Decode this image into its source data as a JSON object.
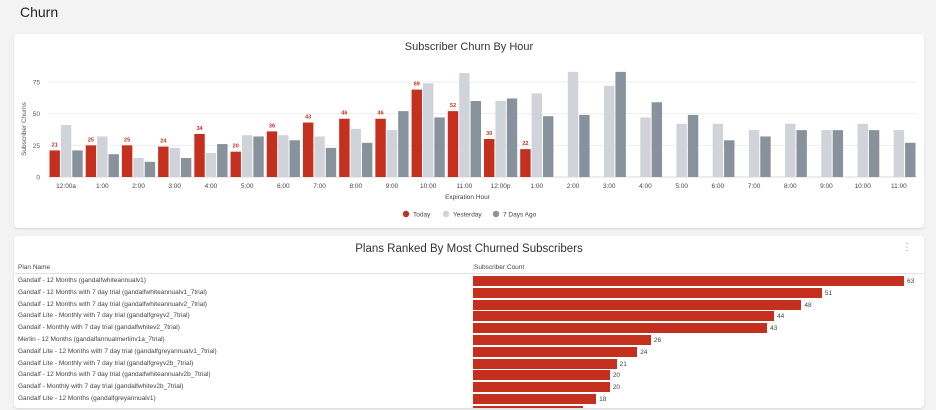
{
  "page_title": "Churn",
  "chart_data": [
    {
      "type": "bar",
      "title": "Subscriber Churn By Hour",
      "xlabel": "Expiration Hour",
      "ylabel": "Subscriber Churns",
      "ylim": [
        0,
        85
      ],
      "yticks": [
        "0",
        "25",
        "50",
        "75"
      ],
      "ytick_values": [
        0,
        25,
        50,
        75
      ],
      "legend_position": "bottom",
      "categories": [
        "12:00a",
        "1:00",
        "2:00",
        "3:00",
        "4:00",
        "5:00",
        "6:00",
        "7:00",
        "8:00",
        "9:00",
        "10:00",
        "11:00",
        "12:00p",
        "1:00",
        "2:00",
        "3:00",
        "4:00",
        "5:00",
        "6:00",
        "7:00",
        "8:00",
        "9:00",
        "10:00",
        "11:00"
      ],
      "series": [
        {
          "name": "Today",
          "color": "#c5301e",
          "labels": true,
          "values": [
            21,
            25,
            25,
            24,
            34,
            20,
            36,
            43,
            46,
            46,
            69,
            52,
            30,
            22,
            null,
            null,
            null,
            null,
            null,
            null,
            null,
            null,
            null,
            null
          ]
        },
        {
          "name": "Yesterday",
          "color": "#d0d3da",
          "labels": false,
          "values": [
            41,
            32,
            15,
            23,
            19,
            33,
            33,
            32,
            38,
            37,
            74,
            82,
            60,
            66,
            83,
            72,
            47,
            42,
            42,
            37,
            42,
            37,
            42,
            37
          ]
        },
        {
          "name": "7 Days Ago",
          "color": "#87929c",
          "labels": false,
          "values": [
            21,
            18,
            12,
            15,
            26,
            32,
            29,
            23,
            27,
            52,
            47,
            60,
            62,
            48,
            49,
            83,
            59,
            49,
            29,
            32,
            37,
            37,
            37,
            27
          ]
        }
      ]
    },
    {
      "type": "bar",
      "orientation": "horizontal",
      "title": "Plans Ranked By Most Churned Subscribers",
      "columns": [
        "Plan Name",
        "Subscriber Count"
      ],
      "color": "#c5301e",
      "max": 63,
      "rows": [
        {
          "name": "Gandalf - 12 Months (gandalfwhiteannualv1)",
          "value": 63
        },
        {
          "name": "Gandalf - 12 Months with 7 day trial (gandalfwhiteannualv1_7trial)",
          "value": 51
        },
        {
          "name": "Gandalf - 12 Months with 7 day trial (gandalfwhiteannualv2_7trial)",
          "value": 48
        },
        {
          "name": "Gandalf Lite - Monthly with 7 day trial (gandalfgreyv2_7trial)",
          "value": 44
        },
        {
          "name": "Gandalf - Monthly with 7 day trial (gandalfwhitev2_7trial)",
          "value": 43
        },
        {
          "name": "Merlin - 12 Months (gandalfannualmerlinv1a_7trial)",
          "value": 26
        },
        {
          "name": "Gandalf Lite - 12 Months with 7 day trial (gandalfgreyannualv1_7trial)",
          "value": 24
        },
        {
          "name": "Gandalf Lite - Monthly with 7 day trial (gandalfgreyv2b_7trial)",
          "value": 21
        },
        {
          "name": "Gandalf - 12 Months with 7 day trial (gandalfwhiteannualv2b_7trial)",
          "value": 20
        },
        {
          "name": "Gandalf - Monthly with 7 day trial (gandalfwhitev2b_7trial)",
          "value": 20
        },
        {
          "name": "Gandalf Lite - 12 Months (gandalfgreyannualv1)",
          "value": 18
        }
      ]
    }
  ],
  "more_menu_icon": "vertical-dots-icon",
  "more_menu_glyph": "⋮"
}
